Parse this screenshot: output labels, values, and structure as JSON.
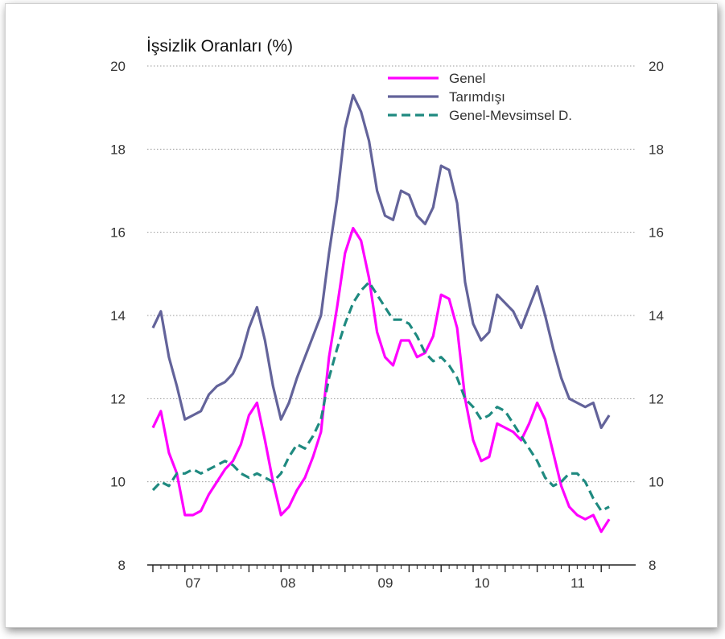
{
  "chart_data": {
    "type": "line",
    "title": "İşsizlik Oranları (%)",
    "xlabel": "",
    "ylabel": "",
    "ylim": [
      8,
      20
    ],
    "yticks": [
      "8",
      "10",
      "12",
      "14",
      "16",
      "18",
      "20"
    ],
    "ytick_values": [
      8,
      10,
      12,
      14,
      16,
      18,
      20
    ],
    "right_axis_ticks": [
      "8",
      "10",
      "12",
      "14",
      "16",
      "18",
      "20"
    ],
    "xtick_labels": [
      "07",
      "08",
      "09",
      "10",
      "11"
    ],
    "grid": "horizontal dotted",
    "legend_position": "top-right",
    "series": [
      {
        "name": "Genel",
        "color": "#ff00ff",
        "dash": "solid",
        "values": [
          11.3,
          11.7,
          10.7,
          10.2,
          9.2,
          9.2,
          9.3,
          9.7,
          10.0,
          10.3,
          10.5,
          10.9,
          11.6,
          11.9,
          11.0,
          10.0,
          9.2,
          9.4,
          9.8,
          10.1,
          10.6,
          11.2,
          13.0,
          14.2,
          15.5,
          16.1,
          15.8,
          14.9,
          13.6,
          13.0,
          12.8,
          13.4,
          13.4,
          13.0,
          13.1,
          13.5,
          14.5,
          14.4,
          13.7,
          12.0,
          11.0,
          10.5,
          10.6,
          11.4,
          11.3,
          11.2,
          11.0,
          11.4,
          11.9,
          11.5,
          10.7,
          9.9,
          9.4,
          9.2,
          9.1,
          9.2,
          8.8,
          9.1
        ]
      },
      {
        "name": "Tarımdışı",
        "color": "#63639a",
        "dash": "solid",
        "values": [
          13.7,
          14.1,
          13.0,
          12.3,
          11.5,
          11.6,
          11.7,
          12.1,
          12.3,
          12.4,
          12.6,
          13.0,
          13.7,
          14.2,
          13.4,
          12.3,
          11.5,
          11.9,
          12.5,
          13.0,
          13.5,
          14.0,
          15.5,
          16.8,
          18.5,
          19.3,
          18.9,
          18.2,
          17.0,
          16.4,
          16.3,
          17.0,
          16.9,
          16.4,
          16.2,
          16.6,
          17.6,
          17.5,
          16.7,
          14.8,
          13.8,
          13.4,
          13.6,
          14.5,
          14.3,
          14.1,
          13.7,
          14.2,
          14.7,
          14.0,
          13.2,
          12.5,
          12.0,
          11.9,
          11.8,
          11.9,
          11.3,
          11.6
        ]
      },
      {
        "name": "Genel-Mevsimsel D.",
        "color": "#1f8a80",
        "dash": "dashed",
        "values": [
          9.8,
          10.0,
          9.9,
          10.2,
          10.2,
          10.3,
          10.2,
          10.3,
          10.4,
          10.5,
          10.4,
          10.2,
          10.1,
          10.2,
          10.1,
          10.0,
          10.2,
          10.6,
          10.9,
          10.8,
          11.1,
          11.5,
          12.5,
          13.2,
          13.8,
          14.3,
          14.6,
          14.8,
          14.5,
          14.2,
          13.9,
          13.9,
          13.8,
          13.5,
          13.1,
          12.9,
          13.0,
          12.8,
          12.5,
          12.0,
          11.8,
          11.5,
          11.6,
          11.8,
          11.7,
          11.4,
          11.1,
          10.8,
          10.5,
          10.1,
          9.9,
          10.0,
          10.2,
          10.2,
          10.0,
          9.6,
          9.3,
          9.4
        ]
      }
    ]
  }
}
